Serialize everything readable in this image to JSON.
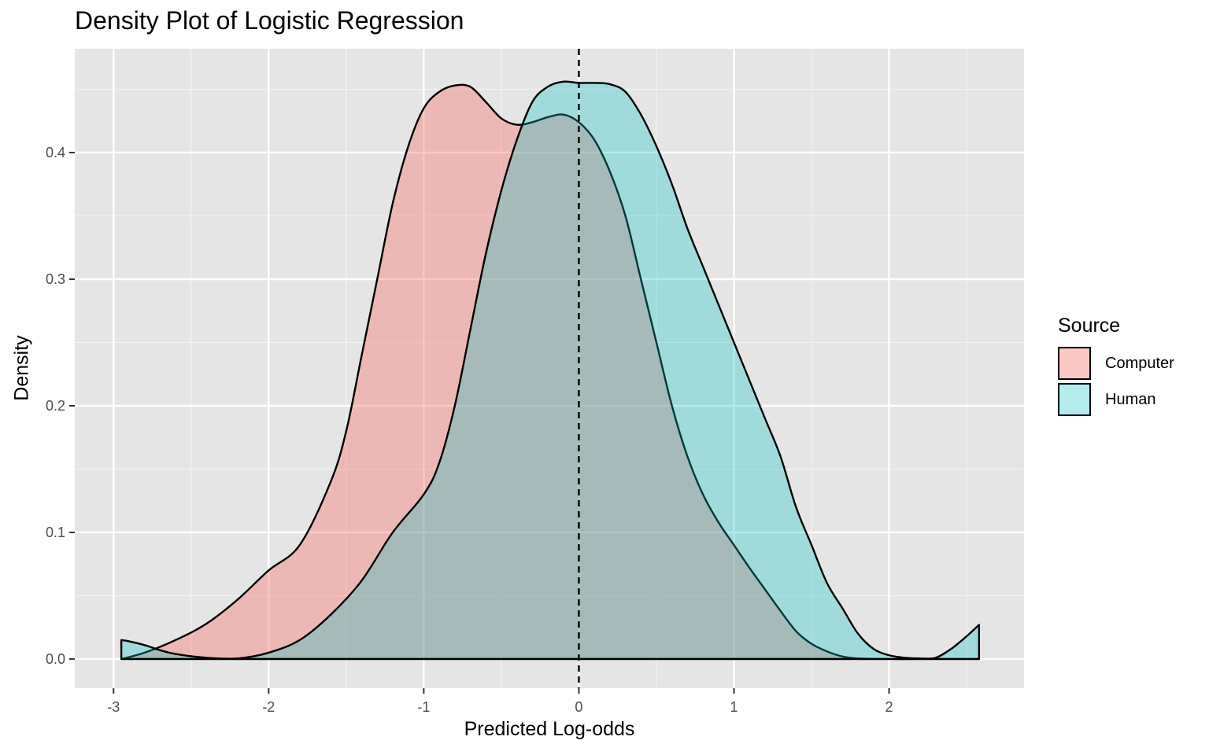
{
  "chart_data": {
    "type": "area",
    "title": "Density Plot of Logistic Regression",
    "xlabel": "Predicted Log-odds",
    "ylabel": "Density",
    "xlim": [
      -3.25,
      2.87
    ],
    "ylim": [
      -0.023,
      0.482
    ],
    "x_ticks": [
      -3,
      -2,
      -1,
      0,
      1,
      2
    ],
    "x_tick_labels": [
      "-3",
      "-2",
      "-1",
      "0",
      "1",
      "2"
    ],
    "y_ticks": [
      0.0,
      0.1,
      0.2,
      0.3,
      0.4
    ],
    "y_tick_labels": [
      "0.0",
      "0.1",
      "0.2",
      "0.3",
      "0.4"
    ],
    "grid": true,
    "legend_position": "right",
    "legend_title": "Source",
    "vline": {
      "x": 0,
      "style": "dashed",
      "color": "#000000"
    },
    "series": [
      {
        "name": "Computer",
        "fill": "#F8766D",
        "fill_opacity": 0.4,
        "x": [
          -2.95,
          -2.8,
          -2.6,
          -2.4,
          -2.2,
          -2.0,
          -1.8,
          -1.6,
          -1.5,
          -1.4,
          -1.3,
          -1.2,
          -1.1,
          -1.0,
          -0.9,
          -0.8,
          -0.7,
          -0.6,
          -0.5,
          -0.4,
          -0.3,
          -0.2,
          -0.1,
          0.0,
          0.1,
          0.2,
          0.3,
          0.4,
          0.5,
          0.6,
          0.7,
          0.8,
          0.9,
          1.0,
          1.1,
          1.2,
          1.3,
          1.4,
          1.5,
          1.6,
          1.7,
          1.8,
          2.0,
          2.2,
          2.4,
          2.58
        ],
        "y": [
          0.0,
          0.005,
          0.015,
          0.028,
          0.047,
          0.07,
          0.09,
          0.14,
          0.18,
          0.24,
          0.3,
          0.36,
          0.405,
          0.435,
          0.448,
          0.453,
          0.452,
          0.44,
          0.427,
          0.422,
          0.424,
          0.428,
          0.43,
          0.424,
          0.41,
          0.385,
          0.35,
          0.3,
          0.25,
          0.2,
          0.16,
          0.13,
          0.108,
          0.09,
          0.072,
          0.055,
          0.038,
          0.022,
          0.012,
          0.006,
          0.002,
          0.0005,
          0.0,
          0.0,
          0.0,
          0.0
        ]
      },
      {
        "name": "Human",
        "fill": "#00BFC4",
        "fill_opacity": 0.3,
        "x": [
          -2.95,
          -2.9,
          -2.8,
          -2.7,
          -2.6,
          -2.4,
          -2.2,
          -2.0,
          -1.8,
          -1.6,
          -1.4,
          -1.2,
          -1.0,
          -0.9,
          -0.8,
          -0.7,
          -0.6,
          -0.5,
          -0.4,
          -0.3,
          -0.2,
          -0.1,
          0.0,
          0.1,
          0.2,
          0.3,
          0.4,
          0.5,
          0.6,
          0.7,
          0.8,
          0.9,
          1.0,
          1.1,
          1.2,
          1.3,
          1.4,
          1.5,
          1.6,
          1.7,
          1.8,
          1.9,
          2.0,
          2.1,
          2.2,
          2.3,
          2.4,
          2.5,
          2.58
        ],
        "y": [
          0.015,
          0.014,
          0.011,
          0.007,
          0.004,
          0.001,
          0.0005,
          0.005,
          0.015,
          0.035,
          0.062,
          0.1,
          0.13,
          0.155,
          0.2,
          0.26,
          0.32,
          0.37,
          0.41,
          0.44,
          0.452,
          0.456,
          0.455,
          0.455,
          0.454,
          0.448,
          0.43,
          0.405,
          0.375,
          0.34,
          0.31,
          0.28,
          0.25,
          0.22,
          0.19,
          0.16,
          0.12,
          0.09,
          0.06,
          0.04,
          0.02,
          0.008,
          0.003,
          0.001,
          0.0005,
          0.001,
          0.008,
          0.018,
          0.027
        ]
      }
    ]
  }
}
